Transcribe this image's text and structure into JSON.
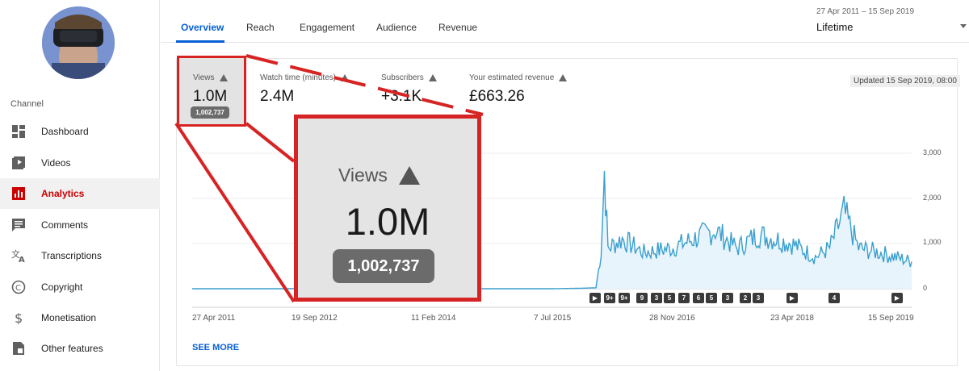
{
  "sidebar": {
    "section_label": "Channel",
    "items": [
      {
        "label": "Dashboard",
        "icon": "dashboard-icon",
        "active": false
      },
      {
        "label": "Videos",
        "icon": "videos-icon",
        "active": false
      },
      {
        "label": "Analytics",
        "icon": "analytics-icon",
        "active": true
      },
      {
        "label": "Comments",
        "icon": "comments-icon",
        "active": false
      },
      {
        "label": "Transcriptions",
        "icon": "transcriptions-icon",
        "active": false
      },
      {
        "label": "Copyright",
        "icon": "copyright-icon",
        "active": false
      },
      {
        "label": "Monetisation",
        "icon": "monetisation-icon",
        "active": false
      },
      {
        "label": "Other features",
        "icon": "other-features-icon",
        "active": false
      }
    ]
  },
  "tabs": [
    {
      "label": "Overview",
      "active": true
    },
    {
      "label": "Reach",
      "active": false
    },
    {
      "label": "Engagement",
      "active": false
    },
    {
      "label": "Audience",
      "active": false
    },
    {
      "label": "Revenue",
      "active": false
    }
  ],
  "period": {
    "date_range": "27 Apr 2011 – 15 Sep 2019",
    "label": "Lifetime"
  },
  "metrics": [
    {
      "label": "Views",
      "value": "1.0M",
      "exact": "1,002,737"
    },
    {
      "label": "Watch time (minutes)",
      "value": "2.4M"
    },
    {
      "label": "Subscribers",
      "value": "+3.1K"
    },
    {
      "label": "Your estimated revenue",
      "value": "£663.26"
    }
  ],
  "updated": "Updated 15 Sep 2019, 08:00",
  "zoom": {
    "label": "Views",
    "value": "1.0M",
    "exact": "1,002,737"
  },
  "chart_data": {
    "type": "line",
    "x_ticks": [
      "27 Apr 2011",
      "19 Sep 2012",
      "11 Feb 2014",
      "7 Jul 2015",
      "28 Nov 2016",
      "23 Apr 2018",
      "15 Sep 2019"
    ],
    "y_ticks": [
      "3,000",
      "2,000",
      "1,000",
      "0"
    ],
    "ylim": [
      0,
      3000
    ],
    "series": [
      {
        "values_note": "",
        "points": [
          [
            "2011-04-27",
            0
          ],
          [
            "2015-07-07",
            0
          ],
          [
            "2015-11-01",
            10
          ],
          [
            "2016-01-10",
            20
          ],
          [
            "2016-02-01",
            800
          ],
          [
            "2016-02-15",
            2600
          ],
          [
            "2016-03-01",
            900
          ],
          [
            "2016-05-01",
            1100
          ],
          [
            "2016-08-01",
            800
          ],
          [
            "2016-11-28",
            900
          ],
          [
            "2017-03-01",
            1100
          ],
          [
            "2017-06-01",
            1300
          ],
          [
            "2017-09-01",
            900
          ],
          [
            "2017-12-01",
            1200
          ],
          [
            "2018-04-23",
            1000
          ],
          [
            "2018-08-01",
            700
          ],
          [
            "2018-10-01",
            900
          ],
          [
            "2018-12-01",
            1700
          ],
          [
            "2019-02-01",
            900
          ],
          [
            "2019-05-01",
            800
          ],
          [
            "2019-09-15",
            600
          ]
        ]
      }
    ],
    "line_color": "#3a9fce",
    "fill_color": "#e8f4fb",
    "grid": true
  },
  "annotation_markers": [
    {
      "label": "▶"
    },
    {
      "label": "9+"
    },
    {
      "label": "9+"
    },
    {
      "label": "9"
    },
    {
      "label": "3"
    },
    {
      "label": "5"
    },
    {
      "label": "7"
    },
    {
      "label": "6"
    },
    {
      "label": "5"
    },
    {
      "label": "3"
    },
    {
      "label": "2"
    },
    {
      "label": "3"
    },
    {
      "label": "▶"
    },
    {
      "label": "4"
    },
    {
      "label": "▶"
    }
  ],
  "see_more": "SEE MORE",
  "colors": {
    "accent": "#065fd4",
    "highlight": "#d62424",
    "active_nav": "#cc0000"
  }
}
